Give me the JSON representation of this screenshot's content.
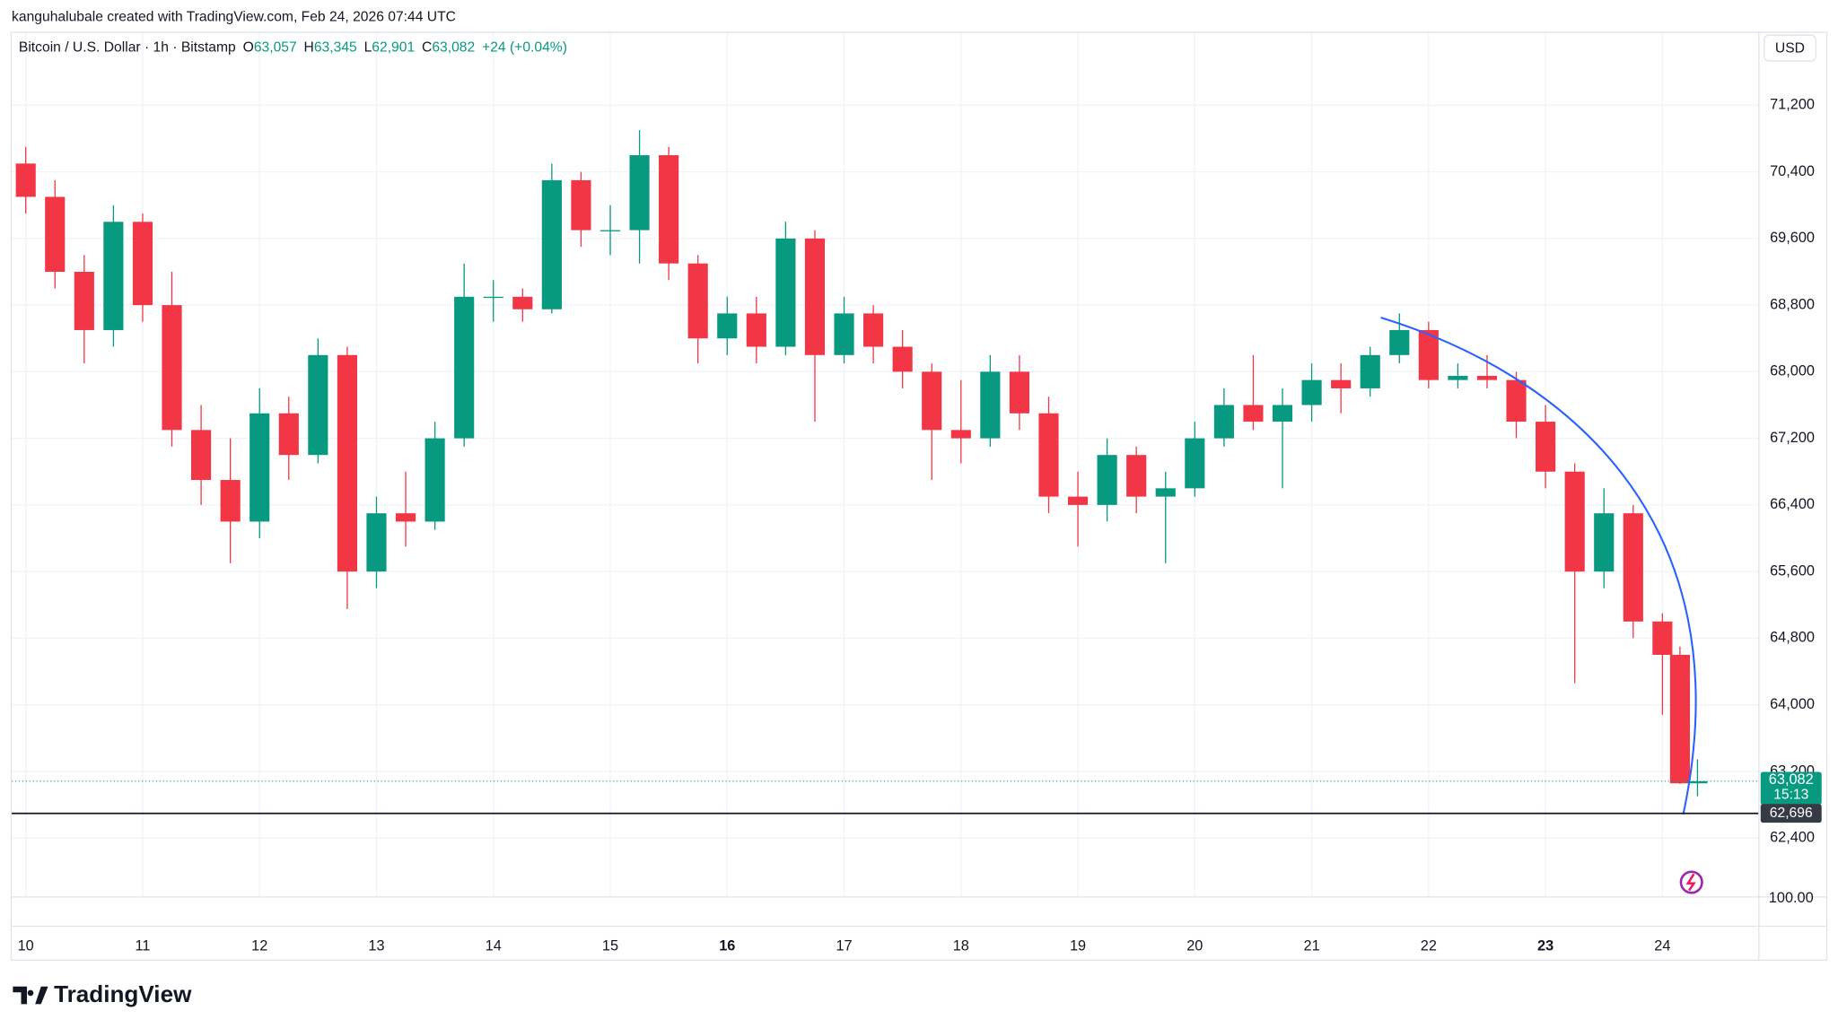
{
  "creator": "kanguhalubale created with TradingView.com, Feb 24, 2026 07:44 UTC",
  "brand": "TradingView",
  "chart_data": {
    "type": "candlestick",
    "title": "Bitcoin / U.S. Dollar · 1h · Bitstamp",
    "legend": [
      {
        "key": "O",
        "value": "63,057"
      },
      {
        "key": "H",
        "value": "63,345"
      },
      {
        "key": "L",
        "value": "62,901"
      },
      {
        "key": "C",
        "value": "63,082"
      }
    ],
    "change": "+24 (+0.04%)",
    "currency": "USD",
    "lower_scale_label": "100.00",
    "up_color": "#089981",
    "down_color": "#f23645",
    "x": [
      10.0,
      10.25,
      10.5,
      10.75,
      11.0,
      11.25,
      11.5,
      11.75,
      12.0,
      12.25,
      12.5,
      12.75,
      13.0,
      13.25,
      13.5,
      13.75,
      14.0,
      14.25,
      14.5,
      14.75,
      15.0,
      15.25,
      15.5,
      15.75,
      16.0,
      16.25,
      16.5,
      16.75,
      17.0,
      17.25,
      17.5,
      17.75,
      18.0,
      18.25,
      18.5,
      18.75,
      19.0,
      19.25,
      19.5,
      19.75,
      20.0,
      20.25,
      20.5,
      20.75,
      21.0,
      21.25,
      21.5,
      21.75,
      22.0,
      22.25,
      22.5,
      22.75,
      23.0,
      23.25,
      23.5,
      23.75,
      24.0,
      24.15,
      24.3
    ],
    "open": [
      70500,
      70100,
      69200,
      68500,
      69800,
      68800,
      67300,
      66700,
      66200,
      67500,
      67000,
      68200,
      65600,
      66300,
      66200,
      67200,
      68900,
      68900,
      68750,
      70300,
      69700,
      69700,
      70600,
      69300,
      68400,
      68700,
      68300,
      69600,
      68200,
      68700,
      68300,
      68000,
      67300,
      67200,
      68000,
      67500,
      66500,
      66400,
      67000,
      66500,
      66600,
      67200,
      67600,
      67400,
      67600,
      67900,
      67800,
      68200,
      68500,
      67900,
      67950,
      67900,
      67400,
      66800,
      65600,
      66300,
      65000,
      64600,
      63057
    ],
    "high": [
      70700,
      70300,
      69400,
      70000,
      69900,
      69200,
      67600,
      67200,
      67800,
      67700,
      68400,
      68300,
      66500,
      66800,
      67400,
      69300,
      69100,
      69000,
      70500,
      70400,
      70000,
      70900,
      70700,
      69400,
      68900,
      68900,
      69800,
      69700,
      68900,
      68800,
      68500,
      68100,
      67900,
      68200,
      68200,
      67700,
      66800,
      67200,
      67100,
      66800,
      67400,
      67800,
      68200,
      67800,
      68100,
      68100,
      68300,
      68700,
      68600,
      68100,
      68200,
      68000,
      67600,
      66900,
      66600,
      66400,
      65100,
      64700,
      63345
    ],
    "low": [
      69900,
      69000,
      68100,
      68300,
      68600,
      67100,
      66400,
      65700,
      66000,
      66700,
      66900,
      65150,
      65400,
      65900,
      66100,
      67100,
      68600,
      68600,
      68700,
      69500,
      69400,
      69300,
      69100,
      68100,
      68200,
      68100,
      68200,
      67400,
      68100,
      68100,
      67800,
      66700,
      66900,
      67100,
      67300,
      66300,
      65900,
      66200,
      66300,
      65700,
      66500,
      67100,
      67300,
      66600,
      67400,
      67500,
      67700,
      68100,
      67800,
      67800,
      67800,
      67200,
      66600,
      64260,
      65400,
      64800,
      63880,
      63050,
      62901
    ],
    "close": [
      70100,
      69200,
      68500,
      69800,
      68800,
      67300,
      66700,
      66200,
      67500,
      67000,
      68200,
      65600,
      66300,
      66200,
      67200,
      68900,
      68900,
      68750,
      70300,
      69700,
      69700,
      70600,
      69300,
      68400,
      68700,
      68300,
      69600,
      68200,
      68700,
      68300,
      68000,
      67300,
      67200,
      68000,
      67500,
      66500,
      66400,
      67000,
      66500,
      66600,
      67200,
      67600,
      67400,
      67600,
      67900,
      67800,
      68200,
      68500,
      67900,
      67950,
      67900,
      67400,
      66800,
      65600,
      66300,
      65000,
      64600,
      63057,
      63082
    ],
    "xlim": [
      9.88,
      24.82
    ],
    "xticks": [
      10,
      11,
      12,
      13,
      14,
      15,
      16,
      17,
      18,
      19,
      20,
      21,
      22,
      23,
      24
    ],
    "bold_xticks": [
      16,
      23
    ],
    "ylim": [
      61700,
      72070
    ],
    "yticks": [
      {
        "value": 62400,
        "label": "62,400"
      },
      {
        "value": 63200,
        "label": "63,200"
      },
      {
        "value": 64000,
        "label": "64,000"
      },
      {
        "value": 64800,
        "label": "64,800"
      },
      {
        "value": 65600,
        "label": "65,600"
      },
      {
        "value": 66400,
        "label": "66,400"
      },
      {
        "value": 67200,
        "label": "67,200"
      },
      {
        "value": 68000,
        "label": "68,000"
      },
      {
        "value": 68800,
        "label": "68,800"
      },
      {
        "value": 69600,
        "label": "69,600"
      },
      {
        "value": 70400,
        "label": "70,400"
      },
      {
        "value": 71200,
        "label": "71,200"
      }
    ],
    "grid": true,
    "last_price": {
      "value": 63082,
      "label": "63,082"
    },
    "countdown": "15:13",
    "hline": {
      "value": 62696,
      "label": "62,696"
    }
  }
}
